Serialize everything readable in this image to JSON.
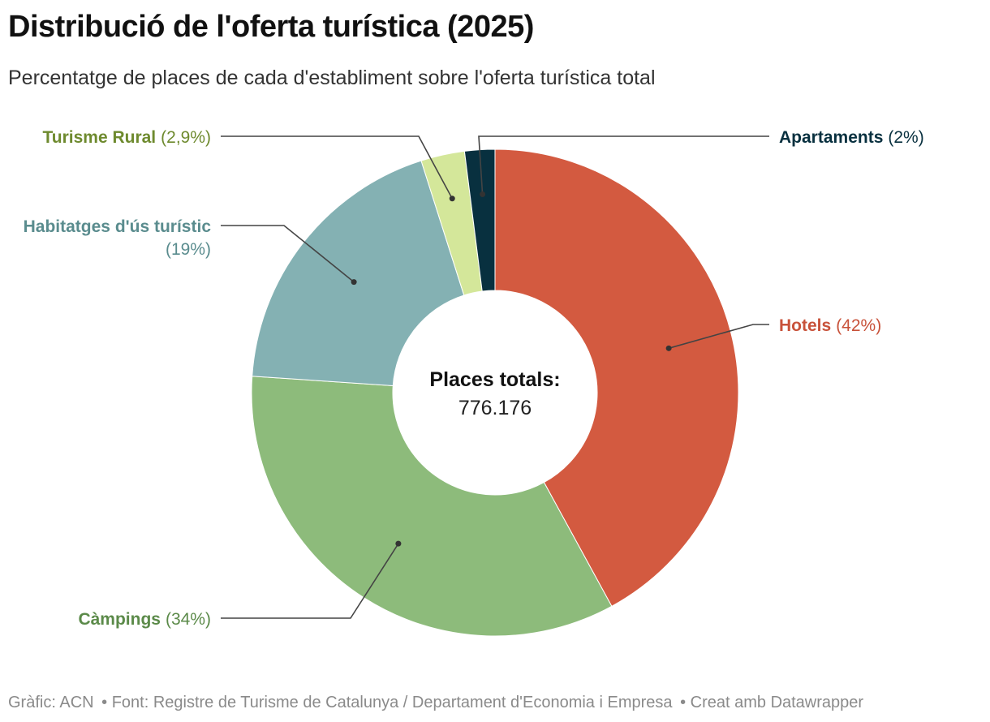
{
  "header": {
    "title": "Distribució de l'oferta turística (2025)",
    "subtitle": "Percentatge de places de cada d'establiment sobre l'oferta turística total"
  },
  "center": {
    "label": "Places totals:",
    "value": "776.176"
  },
  "footer": {
    "credit": "Gràfic: ACN",
    "source": "• Font: Registre de Turisme de Catalunya / Departament d'Economia i Empresa",
    "tool": "• Creat amb Datawrapper"
  },
  "chart_data": {
    "type": "pie",
    "title": "Distribució de l'oferta turística (2025)",
    "subtitle": "Percentatge de places de cada d'establiment sobre l'oferta turística total",
    "donut": true,
    "slices": [
      {
        "name": "Hotels",
        "value": 42,
        "pct_label": "(42%)",
        "color": "#d35a40"
      },
      {
        "name": "Càmpings",
        "value": 34,
        "pct_label": "(34%)",
        "color": "#8dbb7b"
      },
      {
        "name": "Habitatges d'ús turístic",
        "value": 19,
        "pct_label": "(19%)",
        "color": "#84b1b3"
      },
      {
        "name": "Turisme Rural",
        "value": 2.9,
        "pct_label": "(2,9%)",
        "color": "#d4e79a"
      },
      {
        "name": "Apartaments",
        "value": 2,
        "pct_label": "(2%)",
        "color": "#08303f"
      }
    ],
    "label_colors": {
      "Hotels": "#c8523a",
      "Càmpings": "#5b8a49",
      "Habitatges d'ús turístic": "#5a8c8e",
      "Turisme Rural": "#6e8a2e",
      "Apartaments": "#08303f"
    }
  }
}
